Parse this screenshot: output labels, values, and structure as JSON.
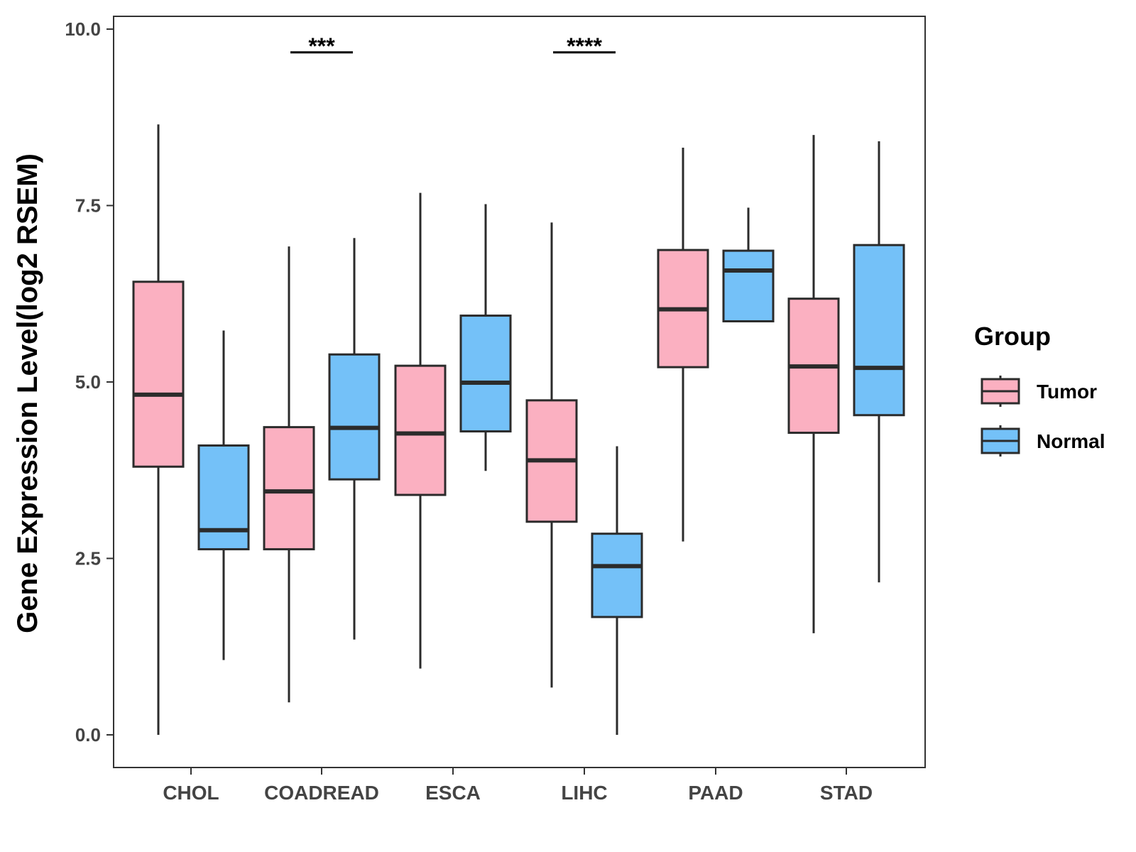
{
  "chart_data": {
    "type": "boxplot",
    "title": "",
    "xlabel": "",
    "ylabel": "Gene Expression Level(log2 RSEM)",
    "ylim": [
      -0.45,
      10.2
    ],
    "yticks": [
      0.0,
      2.5,
      5.0,
      7.5,
      10.0
    ],
    "ytick_labels": [
      "0.0",
      "2.5",
      "5.0",
      "7.5",
      "10.0"
    ],
    "categories": [
      "CHOL",
      "COADREAD",
      "ESCA",
      "LIHC",
      "PAAD",
      "STAD"
    ],
    "legend": {
      "title": "Group",
      "position": "right",
      "entries": [
        "Tumor",
        "Normal"
      ]
    },
    "colors": {
      "Tumor": "#FBB0C1",
      "Normal": "#74C1F8",
      "stroke": "#2b2b2b"
    },
    "series": [
      {
        "name": "Tumor",
        "boxes": [
          {
            "category": "CHOL",
            "min": 0.0,
            "q1": 3.8,
            "median": 4.82,
            "q3": 6.42,
            "max": 8.65
          },
          {
            "category": "COADREAD",
            "min": 0.46,
            "q1": 2.63,
            "median": 3.45,
            "q3": 4.36,
            "max": 6.92
          },
          {
            "category": "ESCA",
            "min": 0.94,
            "q1": 3.4,
            "median": 4.27,
            "q3": 5.23,
            "max": 7.68
          },
          {
            "category": "LIHC",
            "min": 0.67,
            "q1": 3.02,
            "median": 3.89,
            "q3": 4.74,
            "max": 7.26
          },
          {
            "category": "PAAD",
            "min": 2.74,
            "q1": 5.21,
            "median": 6.03,
            "q3": 6.87,
            "max": 8.32
          },
          {
            "category": "STAD",
            "min": 1.44,
            "q1": 4.28,
            "median": 5.22,
            "q3": 6.18,
            "max": 8.5
          }
        ]
      },
      {
        "name": "Normal",
        "boxes": [
          {
            "category": "CHOL",
            "min": 1.06,
            "q1": 2.63,
            "median": 2.9,
            "q3": 4.1,
            "max": 5.73
          },
          {
            "category": "COADREAD",
            "min": 1.35,
            "q1": 3.62,
            "median": 4.35,
            "q3": 5.39,
            "max": 7.04
          },
          {
            "category": "ESCA",
            "min": 3.74,
            "q1": 4.3,
            "median": 4.99,
            "q3": 5.94,
            "max": 7.52
          },
          {
            "category": "LIHC",
            "min": 0.0,
            "q1": 1.67,
            "median": 2.39,
            "q3": 2.85,
            "max": 4.09
          },
          {
            "category": "PAAD",
            "min": 5.86,
            "q1": 5.86,
            "median": 6.58,
            "q3": 6.86,
            "max": 7.47
          },
          {
            "category": "STAD",
            "min": 2.16,
            "q1": 4.53,
            "median": 5.2,
            "q3": 6.94,
            "max": 8.41
          }
        ]
      }
    ],
    "annotations": [
      {
        "category": "COADREAD",
        "text": "***",
        "y": 9.67
      },
      {
        "category": "LIHC",
        "text": "****",
        "y": 9.67
      }
    ]
  }
}
